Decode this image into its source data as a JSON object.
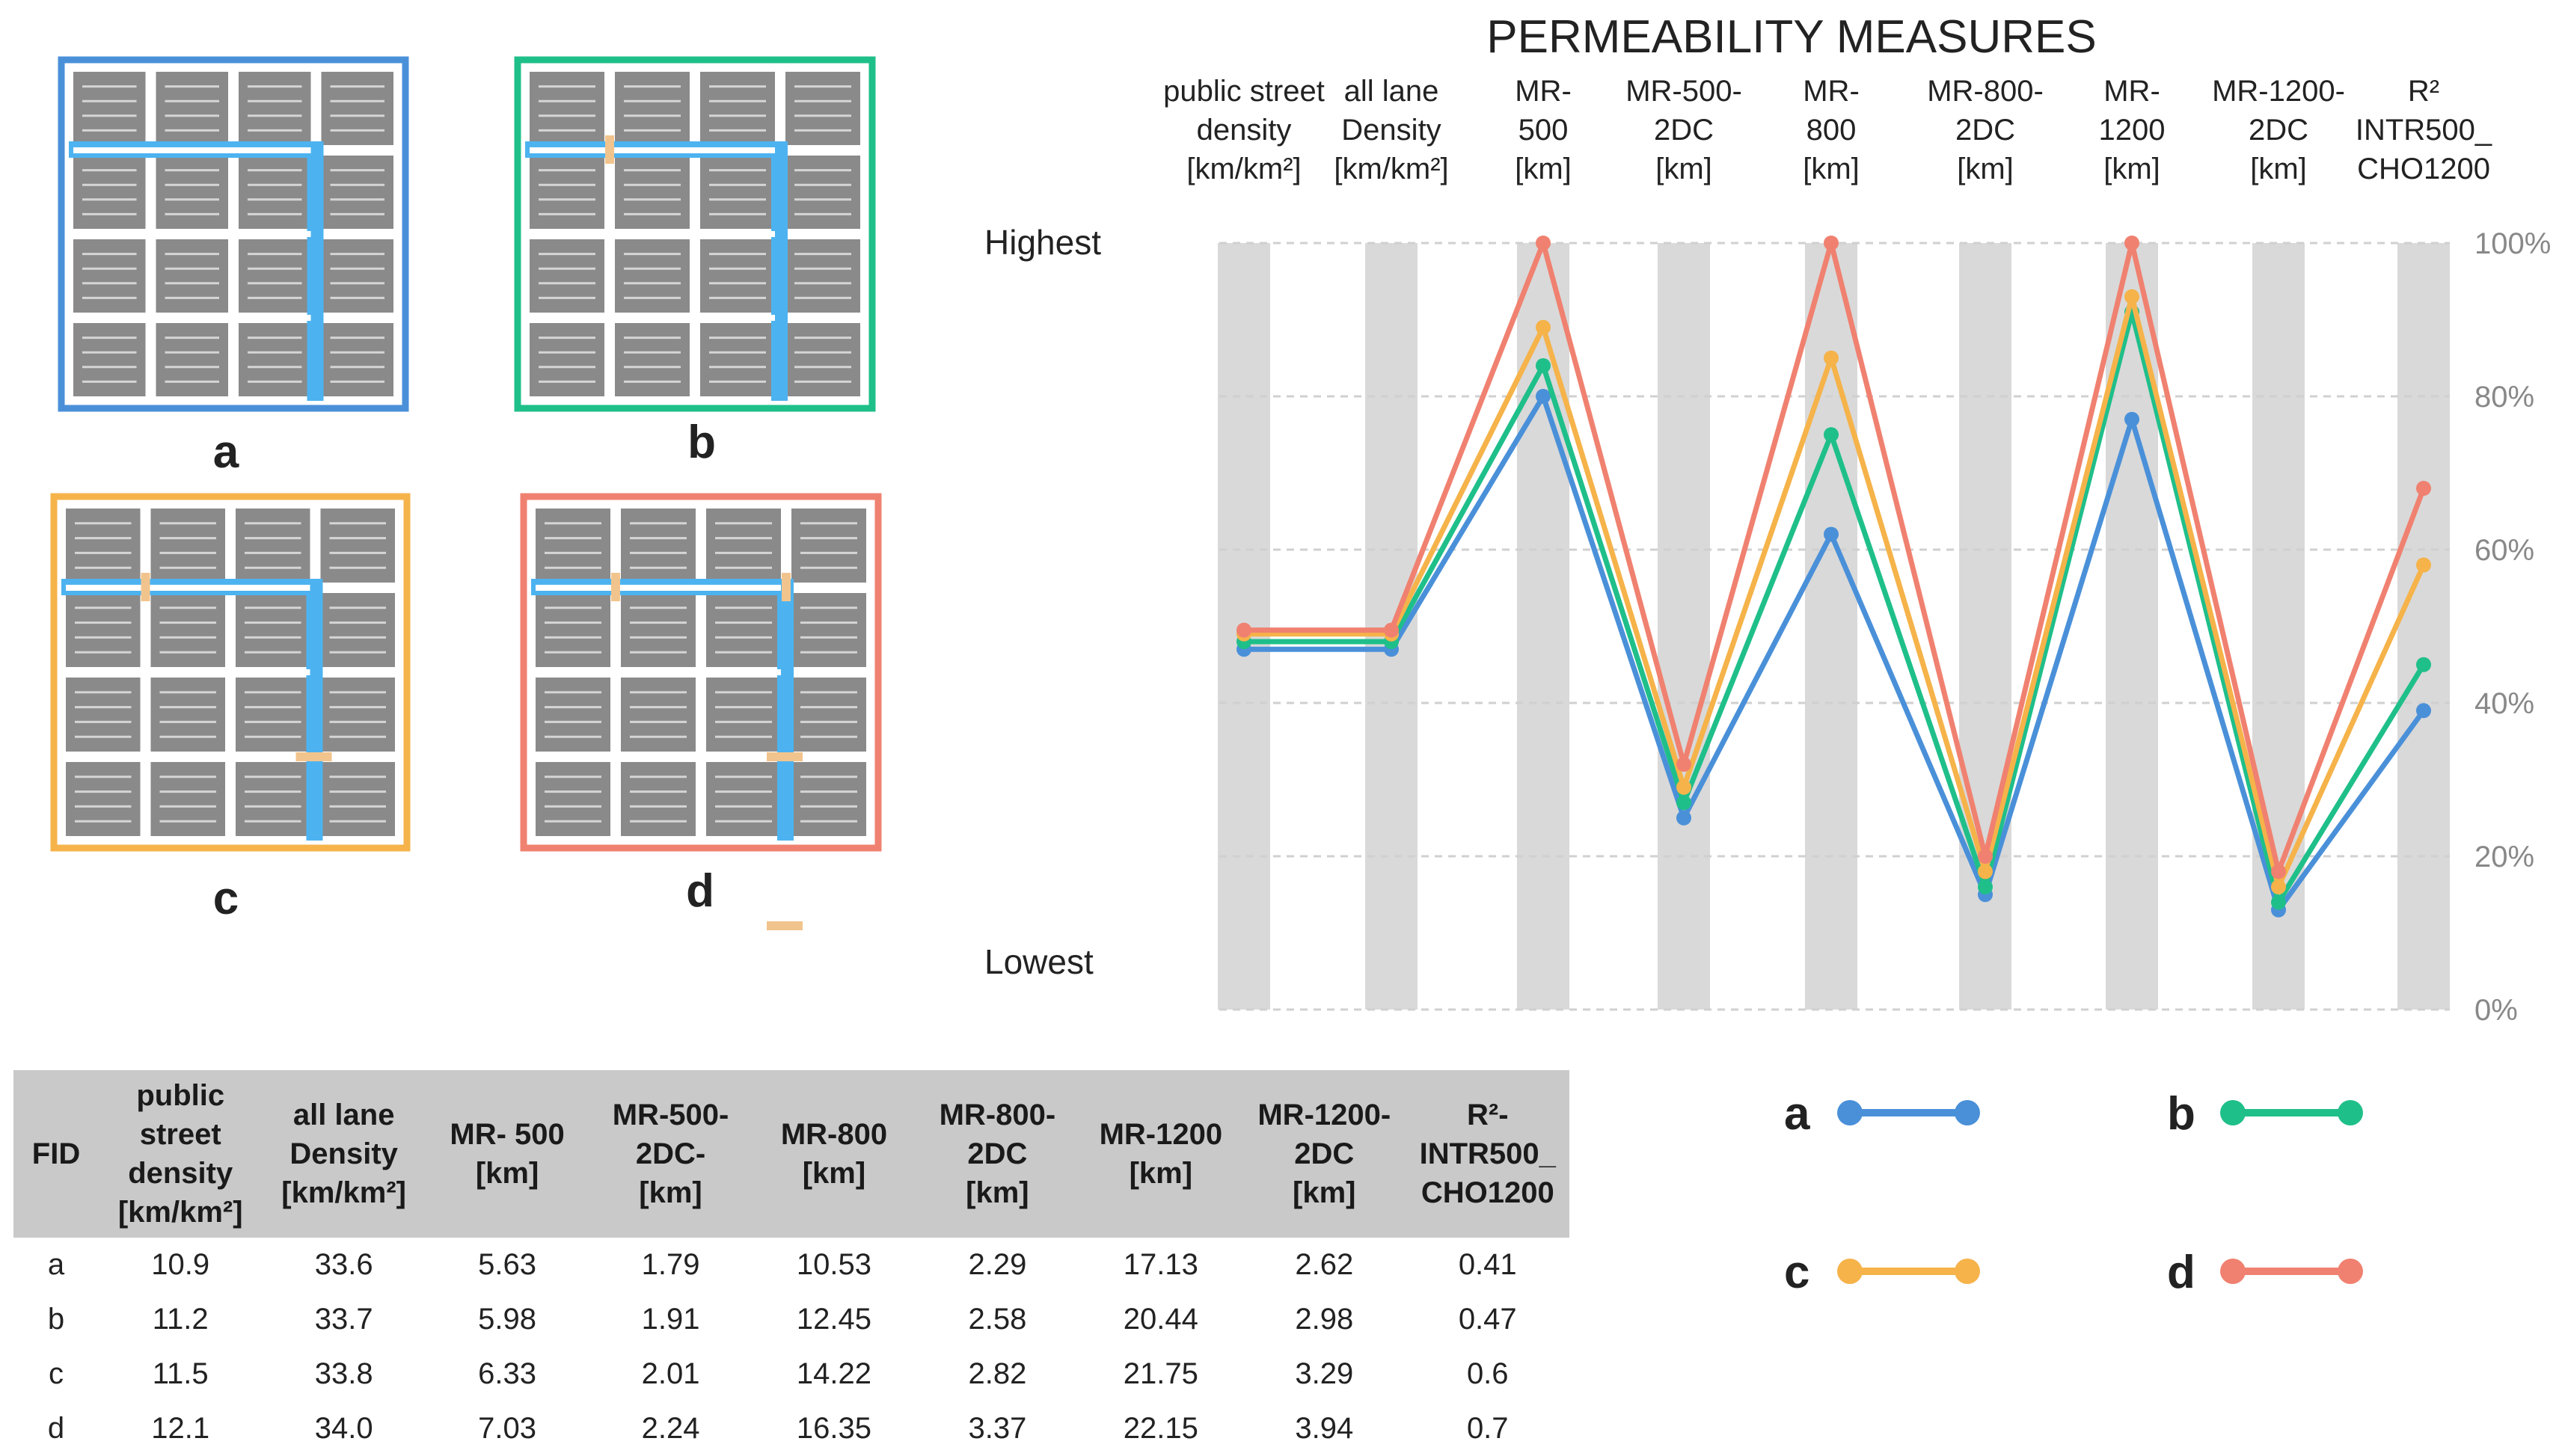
{
  "colors": {
    "a": "#4a90d9",
    "b": "#1fbf8a",
    "c": "#f5b34a",
    "d": "#f08170",
    "street": "#4db3f0",
    "gate": "#f2c48d",
    "block": "#8a8a8a",
    "band": "#d9d9d9"
  },
  "diagrams": [
    {
      "id": "a",
      "label": "a"
    },
    {
      "id": "b",
      "label": "b"
    },
    {
      "id": "c",
      "label": "c"
    },
    {
      "id": "d",
      "label": "d"
    }
  ],
  "chart_data": {
    "type": "line",
    "title": "PERMEABILITY MEASURES",
    "categories": [
      "public street density [km/km²]",
      "all lane Density [km/km²]",
      "MR- 500 [km]",
      "MR-500- 2DC [km]",
      "MR- 800 [km]",
      "MR-800- 2DC [km]",
      "MR- 1200 [km]",
      "MR-1200- 2DC [km]",
      "R² INTR500_ CHO1200"
    ],
    "category_lines": [
      [
        "public street",
        "density",
        "[km/km²]"
      ],
      [
        "all lane",
        "Density",
        "[km/km²]"
      ],
      [
        "MR-",
        "500",
        "[km]"
      ],
      [
        "MR-500-",
        "2DC",
        "[km]"
      ],
      [
        "MR-",
        "800",
        "[km]"
      ],
      [
        "MR-800-",
        "2DC",
        "[km]"
      ],
      [
        "MR-",
        "1200",
        "[km]"
      ],
      [
        "MR-1200-",
        "2DC",
        "[km]"
      ],
      [
        "R²",
        "INTR500_",
        "CHO1200"
      ]
    ],
    "ylabel_top": "Highest",
    "ylabel_bottom": "Lowest",
    "ylim": [
      0,
      100
    ],
    "yticks": [
      "100%",
      "80%",
      "60%",
      "40%",
      "20%",
      "0%"
    ],
    "ytick_values": [
      100,
      80,
      60,
      40,
      20,
      0
    ],
    "series": [
      {
        "name": "a",
        "values": [
          47,
          47,
          80,
          25,
          62,
          15,
          77,
          13,
          39
        ]
      },
      {
        "name": "b",
        "values": [
          48,
          48,
          84,
          27,
          75,
          16,
          91,
          14,
          45
        ]
      },
      {
        "name": "c",
        "values": [
          49,
          49,
          89,
          29,
          85,
          18,
          93,
          16,
          58
        ]
      },
      {
        "name": "d",
        "values": [
          49.5,
          49.5,
          100,
          32,
          100,
          20,
          100,
          18,
          68
        ]
      }
    ]
  },
  "table": {
    "headers": [
      "FID",
      "public street\ndensity\n[km/km²]",
      "all lane\nDensity\n[km/km²]",
      "MR- 500\n[km]",
      "MR-500-\n2DC-\n[km]",
      "MR-800\n[km]",
      "MR-800-\n2DC\n[km]",
      "MR-1200\n[km]",
      "MR-1200-\n2DC\n[km]",
      "R²-\nINTR500_\nCHO1200"
    ],
    "rows": [
      [
        "a",
        "10.9",
        "33.6",
        "5.63",
        "1.79",
        "10.53",
        "2.29",
        "17.13",
        "2.62",
        "0.41"
      ],
      [
        "b",
        "11.2",
        "33.7",
        "5.98",
        "1.91",
        "12.45",
        "2.58",
        "20.44",
        "2.98",
        "0.47"
      ],
      [
        "c",
        "11.5",
        "33.8",
        "6.33",
        "2.01",
        "14.22",
        "2.82",
        "21.75",
        "3.29",
        "0.6"
      ],
      [
        "d",
        "12.1",
        "34.0",
        "7.03",
        "2.24",
        "16.35",
        "3.37",
        "22.15",
        "3.94",
        "0.7"
      ]
    ]
  },
  "legend": [
    {
      "label": "a"
    },
    {
      "label": "b"
    },
    {
      "label": "c"
    },
    {
      "label": "d"
    }
  ]
}
